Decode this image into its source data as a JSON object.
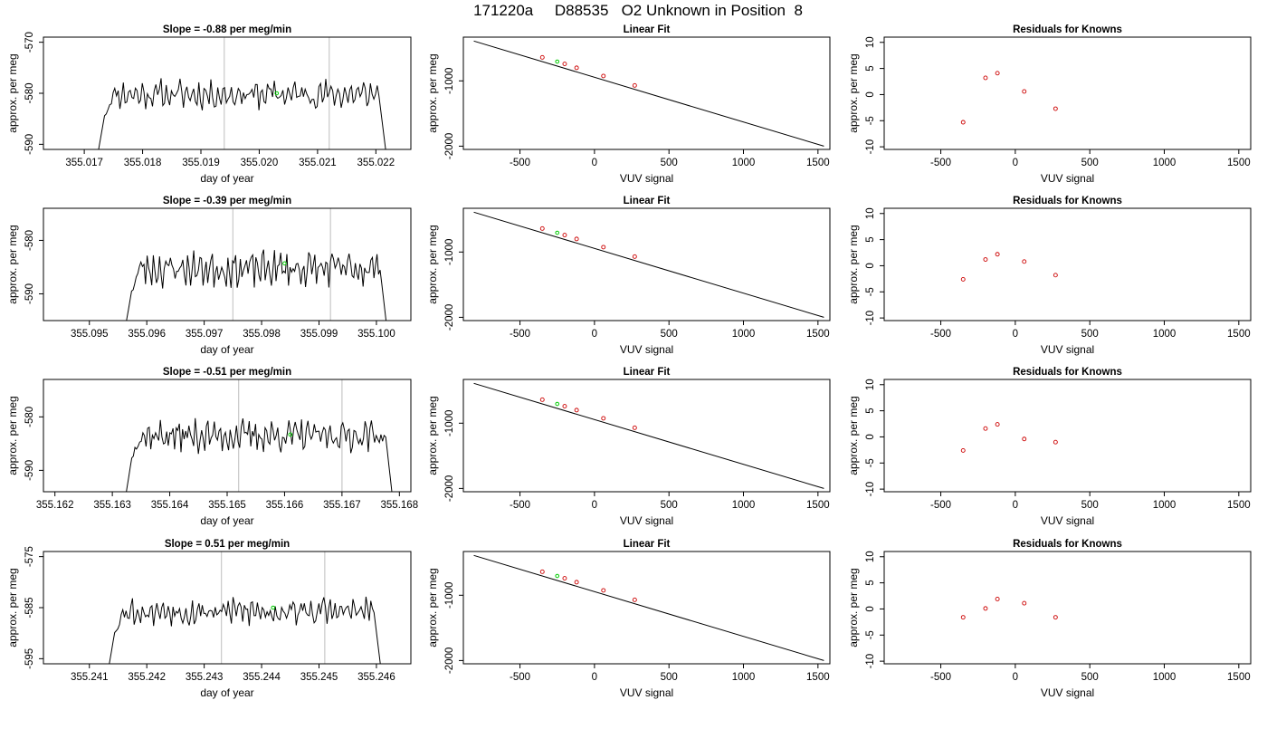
{
  "page_title": "171220a     D88535   O2 Unknown in Position  8",
  "colors": {
    "trace": "#000000",
    "marker": "#00cc00",
    "knowns": "#cc0000",
    "vertical_guides": "#c8c8c8",
    "frame": "#000000"
  },
  "chart_data": [
    {
      "type": "line",
      "row": 0,
      "col": 0,
      "title": "Slope =  -0.88  per meg/min",
      "xlabel": "day of year",
      "ylabel": "approx. per meg",
      "xlim": [
        355.0163,
        355.0226
      ],
      "ylim": [
        -591,
        -569
      ],
      "xticks": [
        "355.017",
        "355.018",
        "355.019",
        "355.020",
        "355.021",
        "355.022"
      ],
      "yticks": [
        "-590",
        "-580",
        "-570"
      ],
      "start": 355.0172,
      "end": 355.0222,
      "base": -580.2,
      "amplitude": 2.2,
      "seed": 11,
      "vlines": [
        355.0194,
        355.0212
      ],
      "marker": {
        "x": 355.0203,
        "y": -580
      }
    },
    {
      "type": "scatter",
      "row": 0,
      "col": 1,
      "title": "Linear Fit",
      "xlabel": "VUV signal",
      "ylabel": "approx. per meg",
      "xlim": [
        -880,
        1580
      ],
      "ylim": [
        -2050,
        -330
      ],
      "xticks": [
        "-500",
        "0",
        "500",
        "1000",
        "1500"
      ],
      "yticks": [
        "-2000",
        "-1000"
      ],
      "line": {
        "x": [
          -810,
          1540
        ],
        "y": [
          -390,
          -2000
        ]
      },
      "points": {
        "x": [
          -350,
          -200,
          -120,
          60,
          270
        ],
        "y": [
          -640,
          -740,
          -800,
          -925,
          -1070
        ]
      },
      "marker": {
        "x": -250,
        "y": -705
      }
    },
    {
      "type": "scatter",
      "row": 0,
      "col": 2,
      "title": "Residuals for Knowns",
      "xlabel": "VUV signal",
      "ylabel": "approx. per meg",
      "xlim": [
        -880,
        1580
      ],
      "ylim": [
        -10.5,
        11
      ],
      "xticks": [
        "-500",
        "0",
        "500",
        "1000",
        "1500"
      ],
      "yticks": [
        "-10",
        "-5",
        "0",
        "5",
        "10"
      ],
      "points": {
        "x": [
          -350,
          -200,
          -120,
          60,
          270
        ],
        "y": [
          -5.3,
          3.2,
          4.1,
          0.6,
          -2.7
        ]
      }
    },
    {
      "type": "line",
      "row": 1,
      "col": 0,
      "title": "Slope =  -0.39  per meg/min",
      "xlabel": "day of year",
      "ylabel": "approx. per meg",
      "xlim": [
        355.0942,
        355.1006
      ],
      "ylim": [
        -595,
        -574
      ],
      "xticks": [
        "355.095",
        "355.096",
        "355.097",
        "355.098",
        "355.099",
        "355.100"
      ],
      "yticks": [
        "-590",
        "-580"
      ],
      "start": 355.0956,
      "end": 355.1002,
      "base": -585.3,
      "amplitude": 2.6,
      "seed": 23,
      "vlines": [
        355.0975,
        355.0992
      ],
      "marker": {
        "x": 355.0984,
        "y": -584.3
      }
    },
    {
      "type": "scatter",
      "row": 1,
      "col": 1,
      "title": "Linear Fit",
      "xlabel": "VUV signal",
      "ylabel": "approx. per meg",
      "xlim": [
        -880,
        1580
      ],
      "ylim": [
        -2050,
        -330
      ],
      "xticks": [
        "-500",
        "0",
        "500",
        "1000",
        "1500"
      ],
      "yticks": [
        "-2000",
        "-1000"
      ],
      "line": {
        "x": [
          -810,
          1540
        ],
        "y": [
          -390,
          -2000
        ]
      },
      "points": {
        "x": [
          -350,
          -200,
          -120,
          60,
          270
        ],
        "y": [
          -640,
          -740,
          -800,
          -925,
          -1070
        ]
      },
      "marker": {
        "x": -250,
        "y": -705
      }
    },
    {
      "type": "scatter",
      "row": 1,
      "col": 2,
      "title": "Residuals for Knowns",
      "xlabel": "VUV signal",
      "ylabel": "approx. per meg",
      "xlim": [
        -880,
        1580
      ],
      "ylim": [
        -10.5,
        11
      ],
      "xticks": [
        "-500",
        "0",
        "500",
        "1000",
        "1500"
      ],
      "yticks": [
        "-10",
        "-5",
        "0",
        "5",
        "10"
      ],
      "points": {
        "x": [
          -350,
          -200,
          -120,
          60,
          270
        ],
        "y": [
          -2.6,
          1.2,
          2.2,
          0.8,
          -1.8
        ]
      }
    },
    {
      "type": "line",
      "row": 2,
      "col": 0,
      "title": "Slope =  -0.51  per meg/min",
      "xlabel": "day of year",
      "ylabel": "approx. per meg",
      "xlim": [
        355.1618,
        355.1682
      ],
      "ylim": [
        -594,
        -573
      ],
      "xticks": [
        "355.162",
        "355.163",
        "355.164",
        "355.165",
        "355.166",
        "355.167",
        "355.168"
      ],
      "yticks": [
        "-590",
        "-580"
      ],
      "start": 355.1632,
      "end": 355.1679,
      "base": -583.5,
      "amplitude": 2.3,
      "seed": 37,
      "vlines": [
        355.1652,
        355.167
      ],
      "marker": {
        "x": 355.1661,
        "y": -583.3
      }
    },
    {
      "type": "scatter",
      "row": 2,
      "col": 1,
      "title": "Linear Fit",
      "xlabel": "VUV signal",
      "ylabel": "approx. per meg",
      "xlim": [
        -880,
        1580
      ],
      "ylim": [
        -2050,
        -330
      ],
      "xticks": [
        "-500",
        "0",
        "500",
        "1000",
        "1500"
      ],
      "yticks": [
        "-2000",
        "-1000"
      ],
      "line": {
        "x": [
          -810,
          1540
        ],
        "y": [
          -390,
          -2000
        ]
      },
      "points": {
        "x": [
          -350,
          -200,
          -120,
          60,
          270
        ],
        "y": [
          -640,
          -740,
          -800,
          -925,
          -1070
        ]
      },
      "marker": {
        "x": -250,
        "y": -705
      }
    },
    {
      "type": "scatter",
      "row": 2,
      "col": 2,
      "title": "Residuals for Knowns",
      "xlabel": "VUV signal",
      "ylabel": "approx. per meg",
      "xlim": [
        -880,
        1580
      ],
      "ylim": [
        -10.5,
        11
      ],
      "xticks": [
        "-500",
        "0",
        "500",
        "1000",
        "1500"
      ],
      "yticks": [
        "-10",
        "-5",
        "0",
        "5",
        "10"
      ],
      "points": {
        "x": [
          -350,
          -200,
          -120,
          60,
          270
        ],
        "y": [
          -2.6,
          1.6,
          2.4,
          -0.4,
          -1.0
        ]
      }
    },
    {
      "type": "line",
      "row": 3,
      "col": 0,
      "title": "Slope =  0.51  per meg/min",
      "xlabel": "day of year",
      "ylabel": "approx. per meg",
      "xlim": [
        355.2402,
        355.2466
      ],
      "ylim": [
        -596,
        -574
      ],
      "xticks": [
        "355.241",
        "355.242",
        "355.243",
        "355.244",
        "355.245",
        "355.246"
      ],
      "yticks": [
        "-595",
        "-585",
        "-575"
      ],
      "start": 355.2413,
      "end": 355.2461,
      "base": -585.7,
      "amplitude": 2.2,
      "seed": 53,
      "vlines": [
        355.2433,
        355.2451
      ],
      "marker": {
        "x": 355.2442,
        "y": -585
      }
    },
    {
      "type": "scatter",
      "row": 3,
      "col": 1,
      "title": "Linear Fit",
      "xlabel": "VUV signal",
      "ylabel": "approx. per meg",
      "xlim": [
        -880,
        1580
      ],
      "ylim": [
        -2050,
        -330
      ],
      "xticks": [
        "-500",
        "0",
        "500",
        "1000",
        "1500"
      ],
      "yticks": [
        "-2000",
        "-1000"
      ],
      "line": {
        "x": [
          -810,
          1540
        ],
        "y": [
          -390,
          -2000
        ]
      },
      "points": {
        "x": [
          -350,
          -200,
          -120,
          60,
          270
        ],
        "y": [
          -640,
          -740,
          -800,
          -925,
          -1070
        ]
      },
      "marker": {
        "x": -250,
        "y": -705
      }
    },
    {
      "type": "scatter",
      "row": 3,
      "col": 2,
      "title": "Residuals for Knowns",
      "xlabel": "VUV signal",
      "ylabel": "approx. per meg",
      "xlim": [
        -880,
        1580
      ],
      "ylim": [
        -10.5,
        11
      ],
      "xticks": [
        "-500",
        "0",
        "500",
        "1000",
        "1500"
      ],
      "yticks": [
        "-10",
        "-5",
        "0",
        "5",
        "10"
      ],
      "points": {
        "x": [
          -350,
          -200,
          -120,
          60,
          270
        ],
        "y": [
          -1.6,
          0.1,
          1.9,
          1.1,
          -1.6
        ]
      }
    }
  ]
}
